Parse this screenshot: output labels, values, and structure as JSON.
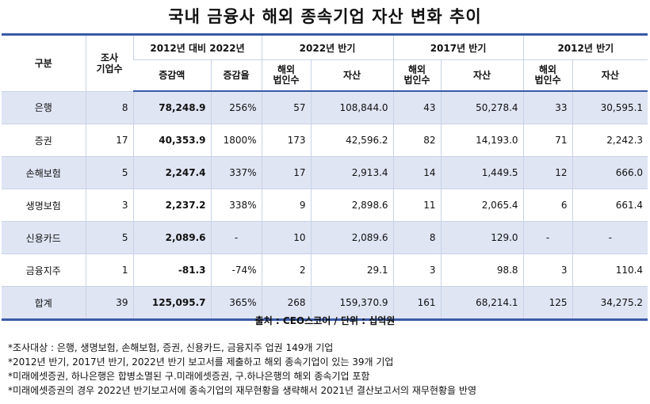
{
  "title": "국내 금융사 해외 종속기업 자산 변화 추이",
  "header": {
    "category": "구분",
    "company_count": "조사\n기업수",
    "group_change": "2012년 대비 2022년",
    "group_2022": "2022년 반기",
    "group_2017": "2017년 반기",
    "group_2012": "2012년 반기",
    "increase_amount": "증감액",
    "increase_rate": "증감율",
    "overseas_corps": "해외\n법인수",
    "assets": "자산"
  },
  "rows": [
    {
      "category": "은행",
      "count": "8",
      "inc_amt": "78,248.9",
      "inc_rate": "256%",
      "c2022": "57",
      "a2022": "108,844.0",
      "c2017": "43",
      "a2017": "50,278.4",
      "c2012": "33",
      "a2012": "30,595.1"
    },
    {
      "category": "증권",
      "count": "17",
      "inc_amt": "40,353.9",
      "inc_rate": "1800%",
      "c2022": "173",
      "a2022": "42,596.2",
      "c2017": "82",
      "a2017": "14,193.0",
      "c2012": "71",
      "a2012": "2,242.3"
    },
    {
      "category": "손해보험",
      "count": "5",
      "inc_amt": "2,247.4",
      "inc_rate": "337%",
      "c2022": "17",
      "a2022": "2,913.4",
      "c2017": "14",
      "a2017": "1,449.5",
      "c2012": "12",
      "a2012": "666.0"
    },
    {
      "category": "생명보험",
      "count": "3",
      "inc_amt": "2,237.2",
      "inc_rate": "338%",
      "c2022": "9",
      "a2022": "2,898.6",
      "c2017": "11",
      "a2017": "2,065.4",
      "c2012": "6",
      "a2012": "661.4"
    },
    {
      "category": "신용카드",
      "count": "5",
      "inc_amt": "2,089.6",
      "inc_rate": "-",
      "c2022": "10",
      "a2022": "2,089.6",
      "c2017": "8",
      "a2017": "129.0",
      "c2012": "-",
      "a2012": "-"
    },
    {
      "category": "금융지주",
      "count": "1",
      "inc_amt": "-81.3",
      "inc_rate": "-74%",
      "c2022": "2",
      "a2022": "29.1",
      "c2017": "3",
      "a2017": "98.8",
      "c2012": "3",
      "a2012": "110.4"
    },
    {
      "category": "합계",
      "count": "39",
      "inc_amt": "125,095.7",
      "inc_rate": "365%",
      "c2022": "268",
      "a2022": "159,370.9",
      "c2017": "161",
      "a2017": "68,214.1",
      "c2012": "125",
      "a2012": "34,275.2"
    }
  ],
  "source": "출처 : CEO스코어 / 단위 : 십억원",
  "notes": [
    "*조사대상 : 은행, 생명보험, 손해보험, 증권, 신용카드, 금융지주 업권 149개 기업",
    "*2012년 반기, 2017년 반기, 2022년 반기 보고서를 제출하고 해외 종속기업이 있는 39개 기업",
    "*미래에셋증권, 하나은행은 합병소멸된 구.미래에셋증권, 구.하나은행의 해외 종속기업 포함",
    "*미래에셋증권의 경우 2022년 반기보고서에 종속기업의 재무현황을 생략해서 2021년 결산보고서의 재무현황을 반영"
  ]
}
